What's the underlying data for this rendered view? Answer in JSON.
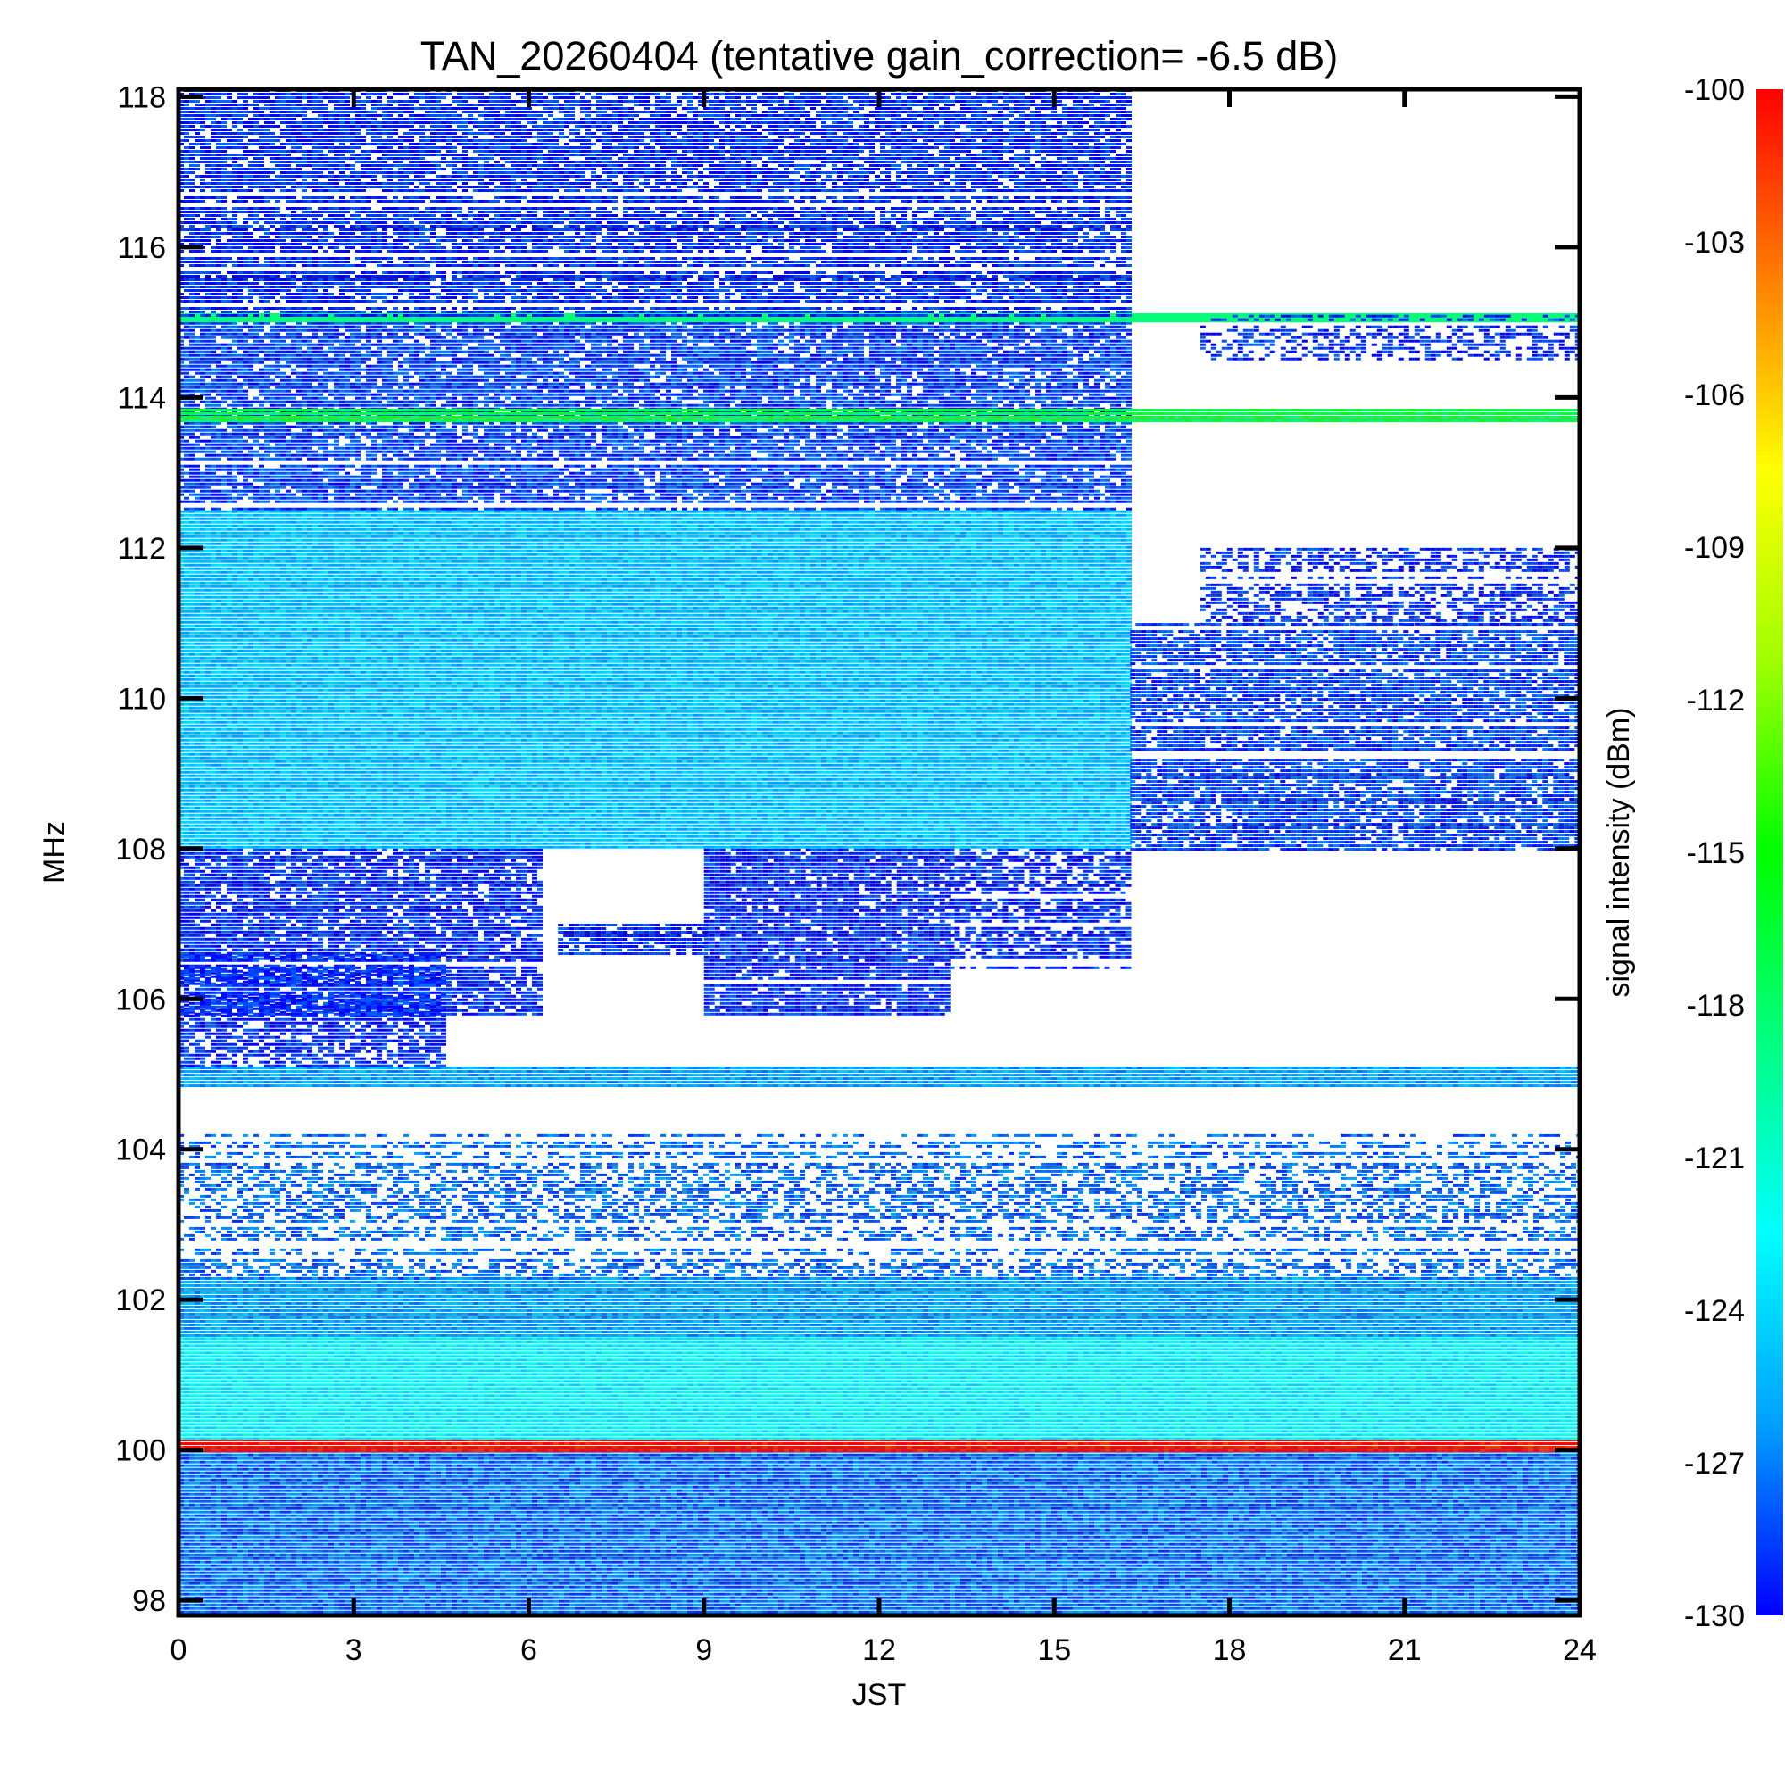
{
  "chart_data": {
    "type": "heatmap",
    "title": "TAN_20260404 (tentative gain_correction= -6.5 dB)",
    "xlabel": "JST",
    "ylabel": "MHz",
    "xlim": [
      0,
      24
    ],
    "ylim": [
      97.8,
      118.1
    ],
    "x_ticks": [
      "0",
      "3",
      "6",
      "9",
      "12",
      "15",
      "18",
      "21",
      "24"
    ],
    "y_ticks": [
      "98",
      "100",
      "102",
      "104",
      "106",
      "108",
      "110",
      "112",
      "114",
      "116",
      "118"
    ],
    "colorbar": {
      "label": "signal intensity (dBm)",
      "range": [
        -130,
        -100
      ],
      "ticks": [
        "-100",
        "-103",
        "-106",
        "-109",
        "-112",
        "-115",
        "-118",
        "-121",
        "-124",
        "-127",
        "-130"
      ],
      "colors": [
        "#0000ff",
        "#00a0ff",
        "#00ffff",
        "#00ff80",
        "#00ff00",
        "#a0ff00",
        "#ffff00",
        "#ff8000",
        "#ff0000"
      ]
    },
    "regions": [
      {
        "f_min": 97.8,
        "f_max": 100.0,
        "t_start": 0,
        "t_end": 24,
        "level_dbm": -127.5,
        "density": 1.0
      },
      {
        "f_min": 100.0,
        "f_max": 100.15,
        "t_start": 0,
        "t_end": 24,
        "level_dbm": -100.0,
        "density": 1.0
      },
      {
        "f_min": 100.15,
        "f_max": 101.5,
        "t_start": 0,
        "t_end": 24,
        "level_dbm": -123.0,
        "density": 1.0
      },
      {
        "f_min": 101.5,
        "f_max": 102.3,
        "t_start": 0,
        "t_end": 24,
        "level_dbm": -126.0,
        "density": 1.0
      },
      {
        "f_min": 102.3,
        "f_max": 104.2,
        "t_start": 0,
        "t_end": 24,
        "level_dbm": -127.5,
        "density": 0.55
      },
      {
        "f_min": 104.85,
        "f_max": 105.1,
        "t_start": 0,
        "t_end": 24,
        "level_dbm": -126.0,
        "density": 1.0
      },
      {
        "f_min": 105.1,
        "f_max": 106.6,
        "t_start": 0,
        "t_end": 4.5,
        "level_dbm": -129.0,
        "density": 0.7
      },
      {
        "f_min": 105.8,
        "f_max": 108.0,
        "t_start": 0,
        "t_end": 6.2,
        "level_dbm": -129.0,
        "density": 0.85
      },
      {
        "f_min": 106.6,
        "f_max": 107.0,
        "t_start": 6.5,
        "t_end": 9.0,
        "level_dbm": -129.0,
        "density": 0.9
      },
      {
        "f_min": 105.8,
        "f_max": 108.0,
        "t_start": 9.0,
        "t_end": 13.2,
        "level_dbm": -129.0,
        "density": 0.9
      },
      {
        "f_min": 106.4,
        "f_max": 108.0,
        "t_start": 13.2,
        "t_end": 16.3,
        "level_dbm": -129.0,
        "density": 0.75
      },
      {
        "f_min": 108.0,
        "f_max": 112.5,
        "t_start": 0,
        "t_end": 16.3,
        "level_dbm": -125.0,
        "density": 1.0
      },
      {
        "f_min": 108.0,
        "f_max": 111.0,
        "t_start": 16.3,
        "t_end": 24,
        "level_dbm": -128.5,
        "density": 0.85
      },
      {
        "f_min": 111.0,
        "f_max": 112.0,
        "t_start": 17.5,
        "t_end": 24,
        "level_dbm": -129.0,
        "density": 0.6
      },
      {
        "f_min": 112.5,
        "f_max": 115.1,
        "t_start": 0,
        "t_end": 16.3,
        "level_dbm": -128.5,
        "density": 0.85
      },
      {
        "f_min": 113.7,
        "f_max": 113.85,
        "t_start": 0,
        "t_end": 24,
        "level_dbm": -117.0,
        "density": 1.0
      },
      {
        "f_min": 115.0,
        "f_max": 115.12,
        "t_start": 0,
        "t_end": 24,
        "level_dbm": -118.5,
        "density": 1.0
      },
      {
        "f_min": 115.1,
        "f_max": 118.1,
        "t_start": 0,
        "t_end": 16.3,
        "level_dbm": -129.0,
        "density": 0.85
      },
      {
        "f_min": 114.5,
        "f_max": 115.1,
        "t_start": 17.5,
        "t_end": 24,
        "level_dbm": -129.0,
        "density": 0.5
      }
    ]
  }
}
